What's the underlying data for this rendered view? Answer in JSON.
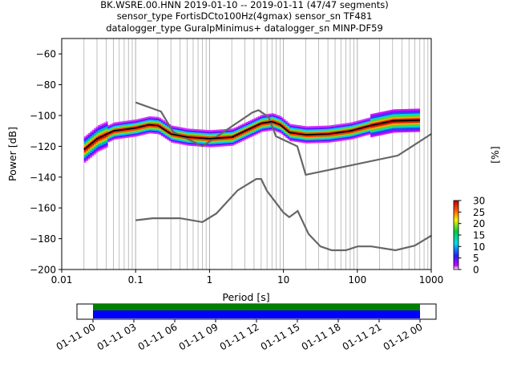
{
  "title_lines": [
    "BK.WSRE.00.HNN   2019-01-10 -- 2019-01-11  (47/47 segments)",
    "sensor_type FortisDCto100Hz(4gmax) sensor_sn TF481",
    "datalogger_type GuralpMinimus+ datalogger_sn MINP-DF59"
  ],
  "chart_data": [
    {
      "type": "heatmap",
      "xlabel": "Period [s]",
      "ylabel": "Power [dB]",
      "xscale": "log",
      "xlim": [
        0.01,
        1000
      ],
      "ylim": [
        -200,
        -50
      ],
      "xticks": [
        0.01,
        0.1,
        1,
        10,
        100,
        1000
      ],
      "xtick_labels": [
        "0.01",
        "0.1",
        "1",
        "10",
        "100",
        "1000"
      ],
      "yticks": [
        -200,
        -180,
        -160,
        -140,
        -120,
        -100,
        -80,
        -60
      ],
      "grid": "vertical minor and major lines",
      "noise_models": [
        {
          "points": [
            [
              0.1,
              -91.5
            ],
            [
              0.22,
              -97.4
            ],
            [
              0.32,
              -110.5
            ],
            [
              0.8,
              -120
            ],
            [
              3.8,
              -98
            ],
            [
              4.6,
              -96.5
            ],
            [
              6.3,
              -101
            ],
            [
              7.9,
              -113.5
            ],
            [
              15.4,
              -120
            ],
            [
              20,
              -138.5
            ],
            [
              354,
              -126
            ],
            [
              1000,
              -112
            ]
          ]
        },
        {
          "points": [
            [
              0.1,
              -168
            ],
            [
              0.17,
              -166.7
            ],
            [
              0.4,
              -166.7
            ],
            [
              0.8,
              -169.2
            ],
            [
              1.24,
              -163.6
            ],
            [
              2.4,
              -148.6
            ],
            [
              4.3,
              -141.2
            ],
            [
              5,
              -141.2
            ],
            [
              6,
              -149
            ],
            [
              10,
              -163
            ],
            [
              12,
              -166
            ],
            [
              15.6,
              -162
            ],
            [
              21.9,
              -177
            ],
            [
              31.6,
              -185
            ],
            [
              45,
              -187.5
            ],
            [
              70,
              -187.5
            ],
            [
              101,
              -185
            ],
            [
              154,
              -185
            ],
            [
              328,
              -187.5
            ],
            [
              600,
              -184.5
            ],
            [
              1000,
              -178
            ]
          ]
        }
      ],
      "mean_curve": [
        [
          0.02,
          -122
        ],
        [
          0.03,
          -115
        ],
        [
          0.05,
          -110
        ],
        [
          0.1,
          -108
        ],
        [
          0.15,
          -106
        ],
        [
          0.2,
          -106.5
        ],
        [
          0.3,
          -112
        ],
        [
          0.5,
          -114
        ],
        [
          1,
          -115
        ],
        [
          2,
          -114
        ],
        [
          3,
          -110
        ],
        [
          5,
          -105
        ],
        [
          7,
          -104
        ],
        [
          9,
          -106
        ],
        [
          12,
          -111
        ],
        [
          20,
          -112.5
        ],
        [
          40,
          -112
        ],
        [
          80,
          -110
        ],
        [
          150,
          -106.5
        ],
        [
          300,
          -103.5
        ],
        [
          700,
          -103
        ]
      ],
      "colorbar": {
        "label": "[%]",
        "range": [
          0,
          30
        ],
        "ticks": [
          0,
          5,
          10,
          15,
          20,
          25,
          30
        ]
      }
    },
    {
      "type": "timeline",
      "xtick_labels": [
        "01-11 00",
        "01-11 03",
        "01-11 06",
        "01-11 09",
        "01-11 12",
        "01-11 15",
        "01-11 18",
        "01-11 21",
        "01-12 00"
      ],
      "colors": {
        "coverage_top": "#008000",
        "coverage_bottom": "#0000ff"
      }
    }
  ]
}
